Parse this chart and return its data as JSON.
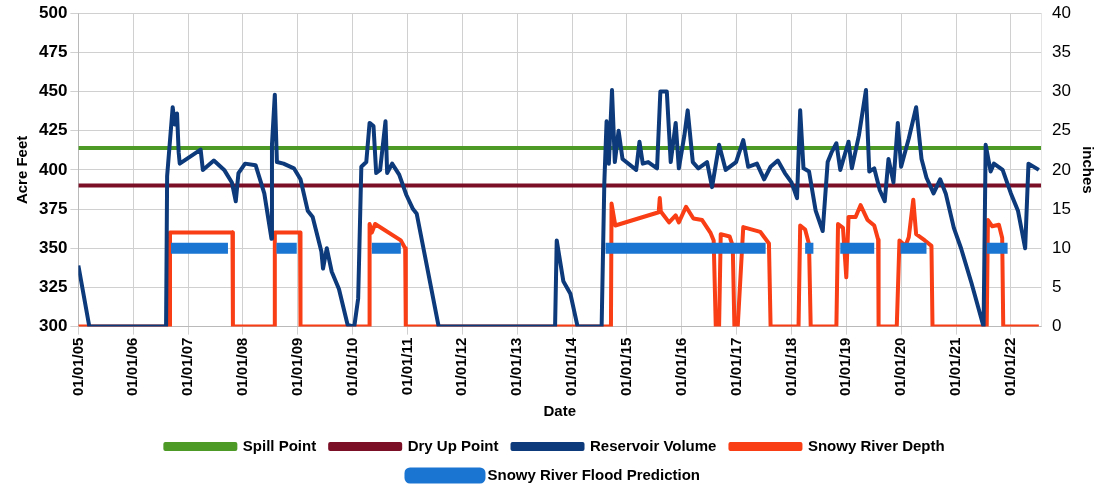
{
  "chart_data": {
    "type": "line",
    "xlabel": "Date",
    "ylabel": "Acre Feet",
    "y2label": "inches",
    "xlim": [
      "2005-01-01",
      "2022-07-21"
    ],
    "xticks": [
      {
        "value": "2005-01-01",
        "label": "01/01/05"
      },
      {
        "value": "2006-01-01",
        "label": "01/01/06"
      },
      {
        "value": "2007-01-01",
        "label": "01/01/07"
      },
      {
        "value": "2008-01-01",
        "label": "01/01/08"
      },
      {
        "value": "2009-01-01",
        "label": "01/01/09"
      },
      {
        "value": "2010-01-01",
        "label": "01/01/10"
      },
      {
        "value": "2011-01-01",
        "label": "01/01/11"
      },
      {
        "value": "2012-01-01",
        "label": "01/01/12"
      },
      {
        "value": "2013-01-01",
        "label": "01/01/13"
      },
      {
        "value": "2014-01-01",
        "label": "01/01/14"
      },
      {
        "value": "2015-01-01",
        "label": "01/01/15"
      },
      {
        "value": "2016-01-01",
        "label": "01/01/16"
      },
      {
        "value": "2017-01-01",
        "label": "01/01/17"
      },
      {
        "value": "2018-01-01",
        "label": "01/01/18"
      },
      {
        "value": "2019-01-01",
        "label": "01/01/19"
      },
      {
        "value": "2020-01-01",
        "label": "01/01/20"
      },
      {
        "value": "2021-01-01",
        "label": "01/01/21"
      },
      {
        "value": "2022-01-01",
        "label": "01/01/22"
      }
    ],
    "ylim": [
      300,
      500
    ],
    "yticks": [
      300,
      325,
      350,
      375,
      400,
      425,
      450,
      475,
      500
    ],
    "y2lim": [
      0,
      40
    ],
    "y2ticks": [
      0,
      5,
      10,
      15,
      20,
      25,
      30,
      35,
      40
    ],
    "grid": true,
    "legend": "bottom",
    "marker": "none",
    "line_style": "solid",
    "series": [
      {
        "name": "Spill Point",
        "color": "#4e9a27",
        "x": [
          "2005-01-01",
          "2022-07-21"
        ],
        "values": [
          414,
          414
        ]
      },
      {
        "name": "Dry Up Point",
        "color": "#7a0f26",
        "x": [
          "2005-01-01",
          "2022-07-21"
        ],
        "values": [
          390,
          390
        ]
      },
      {
        "name": "Reservoir Volume",
        "color": "#0d3a7a",
        "x": [
          "2005-01-01",
          "2005-03-15",
          "2006-08-08",
          "2006-08-15",
          "2006-09-21",
          "2006-10-05",
          "2006-10-20",
          "2006-10-31",
          "2006-11-07",
          "2007-03-26",
          "2007-04-10",
          "2007-06-22",
          "2007-08-30",
          "2007-10-20",
          "2007-11-15",
          "2007-12-03",
          "2008-01-16",
          "2008-03-26",
          "2008-05-23",
          "2008-07-10",
          "2008-07-13",
          "2008-08-01",
          "2008-08-15",
          "2008-09-28",
          "2008-12-06",
          "2009-01-19",
          "2009-03-08",
          "2009-04-10",
          "2009-06-07",
          "2009-06-18",
          "2009-07-13",
          "2009-08-15",
          "2009-10-02",
          "2009-11-29",
          "2010-01-12",
          "2010-02-07",
          "2010-02-28",
          "2010-04-02",
          "2010-04-24",
          "2010-05-20",
          "2010-06-07",
          "2010-07-03",
          "2010-08-08",
          "2010-08-19",
          "2010-09-21",
          "2010-11-07",
          "2010-12-25",
          "2011-02-07",
          "2011-03-04",
          "2011-07-28",
          "2013-09-10",
          "2013-09-21",
          "2013-11-04",
          "2013-12-21",
          "2014-02-07",
          "2014-07-17",
          "2014-08-04",
          "2014-08-19",
          "2014-09-03",
          "2014-09-24",
          "2014-10-13",
          "2014-11-07",
          "2014-12-03",
          "2015-03-04",
          "2015-03-26",
          "2015-04-17",
          "2015-05-23",
          "2015-07-21",
          "2015-08-12",
          "2015-09-24",
          "2015-10-20",
          "2015-11-22",
          "2015-12-13",
          "2016-01-19",
          "2016-02-10",
          "2016-03-15",
          "2016-04-21",
          "2016-06-18",
          "2016-07-21",
          "2016-09-06",
          "2016-10-20",
          "2016-12-28",
          "2017-02-14",
          "2017-03-19",
          "2017-05-16",
          "2017-07-03",
          "2017-08-15",
          "2017-10-02",
          "2017-11-18",
          "2018-01-01",
          "2018-02-07",
          "2018-02-28",
          "2018-03-22",
          "2018-04-28",
          "2018-06-11",
          "2018-07-28",
          "2018-08-30",
          "2018-09-24",
          "2018-10-27",
          "2018-11-22",
          "2019-01-16",
          "2019-02-07",
          "2019-03-26",
          "2019-05-12",
          "2019-06-03",
          "2019-07-06",
          "2019-08-12",
          "2019-09-14",
          "2019-10-09",
          "2019-11-11",
          "2019-12-10",
          "2020-01-01",
          "2020-02-21",
          "2020-04-10",
          "2020-05-16",
          "2020-06-18",
          "2020-08-04",
          "2020-09-17",
          "2020-10-24",
          "2020-12-17",
          "2021-02-03",
          "2021-04-13",
          "2021-07-03",
          "2021-07-17",
          "2021-08-19",
          "2021-09-10",
          "2021-11-07",
          "2022-01-01",
          "2022-02-17",
          "2022-04-06",
          "2022-04-28",
          "2022-07-06"
        ],
        "values": [
          339,
          300,
          300,
          396,
          440,
          429,
          436,
          411,
          404,
          413,
          400,
          406,
          400,
          392,
          380,
          398,
          404,
          403,
          385,
          356,
          416,
          448,
          405,
          404,
          401,
          394,
          374,
          370,
          348,
          337,
          350,
          335,
          324,
          301,
          300,
          318,
          402,
          405,
          430,
          428,
          398,
          400,
          431,
          398,
          404,
          397,
          384,
          375,
          372,
          300,
          300,
          355,
          329,
          321,
          300,
          300,
          392,
          431,
          404,
          451,
          405,
          425,
          407,
          400,
          418,
          404,
          405,
          401,
          450,
          450,
          405,
          430,
          401,
          422,
          438,
          405,
          401,
          405,
          389,
          416,
          400,
          405,
          419,
          402,
          404,
          394,
          402,
          406,
          398,
          392,
          382,
          438,
          401,
          399,
          374,
          361,
          405,
          411,
          417,
          400,
          418,
          401,
          422,
          451,
          399,
          401,
          387,
          380,
          407,
          392,
          430,
          402,
          420,
          440,
          407,
          395,
          385,
          394,
          385,
          363,
          350,
          328,
          300,
          416,
          399,
          404,
          400,
          385,
          374,
          350,
          404,
          400
        ]
      },
      {
        "name": "Snowy River Depth",
        "color": "#f93d14",
        "axis": "y2",
        "x": [
          "2005-01-01",
          "2006-08-30",
          "2006-09-03",
          "2007-10-24",
          "2007-10-27",
          "2008-07-28",
          "2008-08-01",
          "2009-01-16",
          "2009-01-19",
          "2010-04-21",
          "2010-04-24",
          "2010-05-09",
          "2010-05-31",
          "2010-11-18",
          "2010-12-17",
          "2010-12-21",
          "2014-09-17",
          "2014-09-21",
          "2014-10-16",
          "2015-08-01",
          "2015-08-08",
          "2015-08-15",
          "2015-10-09",
          "2015-11-22",
          "2015-12-13",
          "2016-01-30",
          "2016-03-19",
          "2016-05-16",
          "2016-07-10",
          "2016-08-01",
          "2016-08-15",
          "2016-09-06",
          "2016-09-17",
          "2016-11-15",
          "2016-12-06",
          "2016-12-17",
          "2017-01-08",
          "2017-02-14",
          "2017-06-07",
          "2017-08-04",
          "2017-08-15",
          "2018-02-17",
          "2018-02-28",
          "2018-04-02",
          "2018-04-28",
          "2018-05-09",
          "2018-10-27",
          "2018-11-07",
          "2018-12-10",
          "2019-01-01",
          "2019-01-16",
          "2019-03-04",
          "2019-04-06",
          "2019-05-23",
          "2019-07-06",
          "2019-08-01",
          "2019-08-04",
          "2019-12-03",
          "2019-12-21",
          "2020-01-30",
          "2020-02-21",
          "2020-03-22",
          "2020-04-10",
          "2020-06-07",
          "2020-07-21",
          "2020-07-28",
          "2021-07-24",
          "2021-08-01",
          "2021-08-30",
          "2021-10-13",
          "2021-11-04",
          "2021-11-11",
          "2022-07-06"
        ],
        "values": [
          0,
          0,
          12,
          12,
          0,
          0,
          12,
          12,
          0,
          0,
          13.1,
          12,
          13.1,
          11,
          10,
          0,
          0,
          15.7,
          12.9,
          14.6,
          16.4,
          14.7,
          13.3,
          14.2,
          13.3,
          15.3,
          13.8,
          13.6,
          12,
          11,
          0,
          0,
          11.8,
          11.5,
          10.3,
          0,
          0,
          12.7,
          12.1,
          10.6,
          0,
          0,
          12.9,
          12.4,
          10.5,
          0,
          0,
          13.1,
          12.6,
          6.3,
          14,
          14,
          15.5,
          13.6,
          12.9,
          11.1,
          0,
          0,
          11,
          10.3,
          11.4,
          16.2,
          11.8,
          11,
          10.3,
          0,
          0,
          13.6,
          12.8,
          13,
          11.3,
          0,
          0
        ]
      },
      {
        "name": "Snowy River Flood Prediction",
        "color": "#1a74d1",
        "axis": "y2",
        "x": [
          "2006-09-10",
          "2007-09-24",
          "2008-03-15",
          "2008-08-12",
          "2008-12-25",
          "2009-07-03",
          "2010-05-09",
          "2010-11-18",
          "2012-07-03",
          "2014-08-12",
          "2017-07-13",
          "2017-11-26",
          "2018-04-02",
          "2018-05-27",
          "2018-08-08",
          "2018-11-22",
          "2019-07-06",
          "2019-10-20",
          "2019-12-28",
          "2020-06-18",
          "2021-01-01",
          "2021-07-24",
          "2021-12-10"
        ],
        "values": [
          10,
          10,
          null,
          10,
          10,
          null,
          10,
          10,
          null,
          10,
          10,
          null,
          10,
          10,
          null,
          10,
          10,
          null,
          10,
          10,
          null,
          10,
          10
        ]
      }
    ]
  }
}
